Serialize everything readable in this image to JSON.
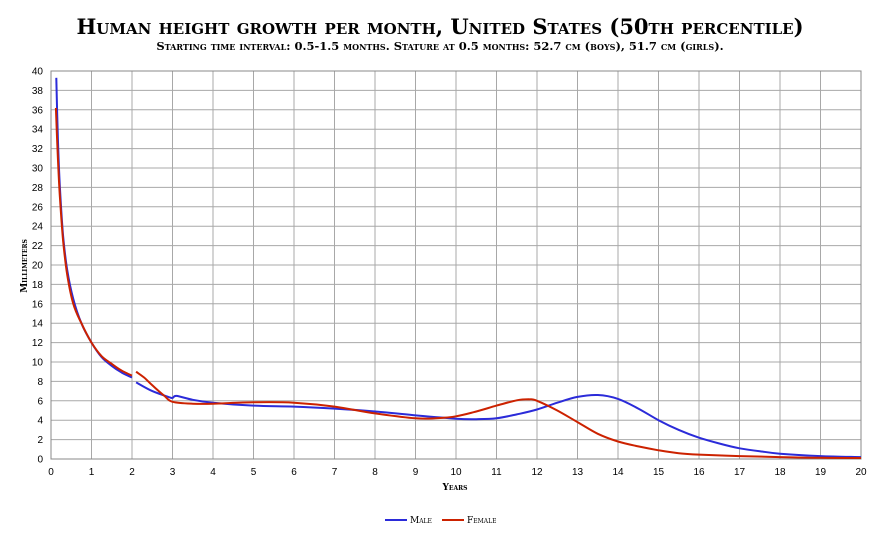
{
  "chart_data": {
    "type": "line",
    "title": "Human height growth per month, United States (50th percentile)",
    "subtitle": "Starting time interval: 0.5-1.5 months. Stature at 0.5 months: 52.7 cm (boys), 51.7 cm (girls).",
    "xlabel": "Years",
    "ylabel": "Millimeters",
    "xlim": [
      0,
      20
    ],
    "ylim": [
      0,
      40
    ],
    "x_ticks": [
      0,
      1,
      2,
      3,
      4,
      5,
      6,
      7,
      8,
      9,
      10,
      11,
      12,
      13,
      14,
      15,
      16,
      17,
      18,
      19,
      20
    ],
    "y_ticks": [
      0,
      2,
      4,
      6,
      8,
      10,
      12,
      14,
      16,
      18,
      20,
      22,
      24,
      26,
      28,
      30,
      32,
      34,
      36,
      38,
      40
    ],
    "grid": true,
    "legend_position": "bottom",
    "series": [
      {
        "name": "Male",
        "color": "#2b2bd9",
        "segments": [
          [
            [
              0.13,
              39.3
            ],
            [
              0.17,
              33
            ],
            [
              0.22,
              28
            ],
            [
              0.3,
              23
            ],
            [
              0.4,
              19.5
            ],
            [
              0.55,
              16.5
            ],
            [
              0.75,
              14
            ],
            [
              1.0,
              12
            ],
            [
              1.25,
              10.5
            ],
            [
              1.5,
              9.6
            ],
            [
              1.75,
              8.9
            ],
            [
              2.0,
              8.4
            ]
          ],
          [
            [
              2.1,
              7.9
            ],
            [
              2.5,
              7.0
            ],
            [
              2.9,
              6.4
            ],
            [
              3.0,
              6.3
            ],
            [
              3.1,
              6.5
            ],
            [
              3.5,
              6.1
            ],
            [
              4.0,
              5.8
            ],
            [
              5.0,
              5.5
            ],
            [
              6.0,
              5.4
            ],
            [
              7.0,
              5.2
            ],
            [
              8.0,
              4.9
            ],
            [
              9.0,
              4.5
            ],
            [
              10.0,
              4.15
            ],
            [
              10.5,
              4.1
            ],
            [
              11.0,
              4.2
            ],
            [
              11.5,
              4.6
            ],
            [
              12.0,
              5.1
            ],
            [
              12.5,
              5.8
            ],
            [
              13.0,
              6.4
            ],
            [
              13.5,
              6.6
            ],
            [
              14.0,
              6.2
            ],
            [
              14.5,
              5.2
            ],
            [
              15.0,
              4.0
            ],
            [
              15.5,
              3.0
            ],
            [
              16.0,
              2.2
            ],
            [
              16.5,
              1.6
            ],
            [
              17.0,
              1.1
            ],
            [
              17.5,
              0.8
            ],
            [
              18.0,
              0.55
            ],
            [
              19.0,
              0.3
            ],
            [
              20.0,
              0.2
            ]
          ]
        ]
      },
      {
        "name": "Female",
        "color": "#cc2200",
        "segments": [
          [
            [
              0.12,
              36.2
            ],
            [
              0.17,
              31
            ],
            [
              0.22,
              27
            ],
            [
              0.3,
              22.5
            ],
            [
              0.4,
              19
            ],
            [
              0.55,
              16
            ],
            [
              0.75,
              14
            ],
            [
              1.0,
              12
            ],
            [
              1.25,
              10.6
            ],
            [
              1.5,
              9.8
            ],
            [
              1.75,
              9.1
            ],
            [
              2.0,
              8.6
            ]
          ],
          [
            [
              2.1,
              9.0
            ],
            [
              2.3,
              8.4
            ],
            [
              2.5,
              7.6
            ],
            [
              2.8,
              6.5
            ],
            [
              3.0,
              5.9
            ],
            [
              3.5,
              5.7
            ],
            [
              4.0,
              5.7
            ],
            [
              5.0,
              5.85
            ],
            [
              6.0,
              5.8
            ],
            [
              7.0,
              5.4
            ],
            [
              8.0,
              4.7
            ],
            [
              9.0,
              4.2
            ],
            [
              9.5,
              4.2
            ],
            [
              10.0,
              4.4
            ],
            [
              10.5,
              4.9
            ],
            [
              11.0,
              5.5
            ],
            [
              11.5,
              6.05
            ],
            [
              11.8,
              6.15
            ],
            [
              12.0,
              6.0
            ],
            [
              12.5,
              5.0
            ],
            [
              13.0,
              3.8
            ],
            [
              13.5,
              2.6
            ],
            [
              14.0,
              1.8
            ],
            [
              14.5,
              1.3
            ],
            [
              15.0,
              0.9
            ],
            [
              15.5,
              0.6
            ],
            [
              16.0,
              0.45
            ],
            [
              17.0,
              0.3
            ],
            [
              18.0,
              0.2
            ],
            [
              19.0,
              0.12
            ],
            [
              20.0,
              0.1
            ]
          ]
        ]
      }
    ]
  }
}
